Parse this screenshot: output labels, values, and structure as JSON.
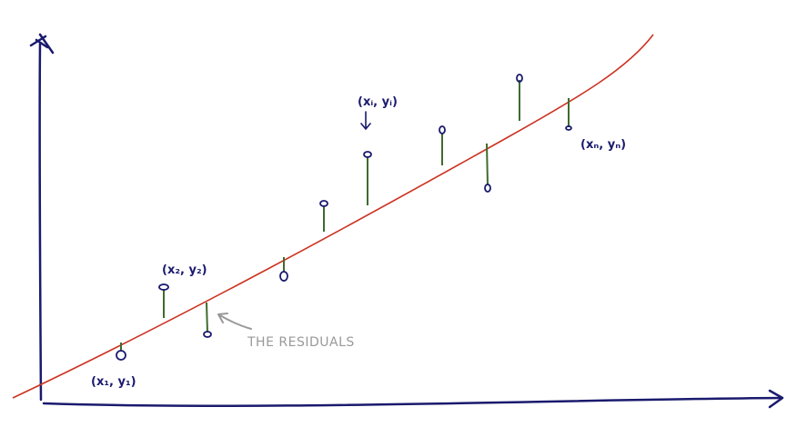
{
  "diagram": {
    "colors": {
      "axis": "#1a1a6e",
      "fit_line": "#cc3322",
      "residual": "#3f6b2e",
      "point": "#1a1a6e",
      "annotation": "#999999"
    },
    "labels": {
      "point_first": "(x₁, y₁)",
      "point_second": "(x₂, y₂)",
      "point_i": "(xᵢ, yᵢ)",
      "point_n": "(xₙ, yₙ)",
      "residuals": "THE RESIDUALS"
    }
  }
}
